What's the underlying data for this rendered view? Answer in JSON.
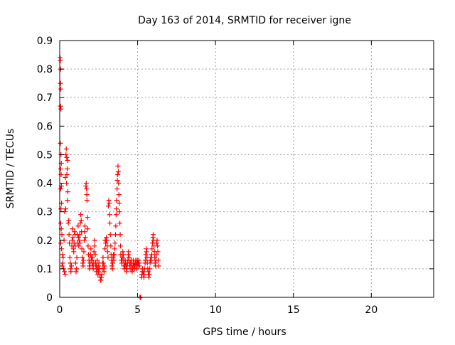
{
  "chart_data": {
    "type": "scatter",
    "title": "Day 163 of 2014, SRMTID for receiver igne",
    "xlabel": "GPS time / hours",
    "ylabel": "SRMTID / TECUs",
    "xlim": [
      0,
      24
    ],
    "ylim": [
      0,
      0.9
    ],
    "xticks": [
      0,
      5,
      10,
      15,
      20
    ],
    "yticks": [
      0,
      0.1,
      0.2,
      0.3,
      0.4,
      0.5,
      0.6,
      0.7,
      0.8,
      0.9
    ],
    "xtick_labels": [
      "0",
      "5",
      "10",
      "15",
      "20"
    ],
    "ytick_labels": [
      "0",
      "0.1",
      "0.2",
      "0.3",
      "0.4",
      "0.5",
      "0.6",
      "0.7",
      "0.8",
      "0.9"
    ],
    "grid": true,
    "marker": "+",
    "color": "#ff0000",
    "series": [
      {
        "name": "SRMTID",
        "points": [
          [
            0.03,
            0.84
          ],
          [
            0.04,
            0.83
          ],
          [
            0.06,
            0.8
          ],
          [
            0.05,
            0.75
          ],
          [
            0.07,
            0.73
          ],
          [
            0.05,
            0.67
          ],
          [
            0.08,
            0.66
          ],
          [
            0.04,
            0.54
          ],
          [
            0.08,
            0.5
          ],
          [
            0.1,
            0.47
          ],
          [
            0.06,
            0.45
          ],
          [
            0.09,
            0.43
          ],
          [
            0.11,
            0.39
          ],
          [
            0.06,
            0.38
          ],
          [
            0.12,
            0.33
          ],
          [
            0.08,
            0.31
          ],
          [
            0.06,
            0.26
          ],
          [
            0.1,
            0.24
          ],
          [
            0.14,
            0.22
          ],
          [
            0.07,
            0.19
          ],
          [
            0.12,
            0.17
          ],
          [
            0.18,
            0.15
          ],
          [
            0.2,
            0.12
          ],
          [
            0.25,
            0.1
          ],
          [
            0.3,
            0.09
          ],
          [
            0.22,
            0.14
          ],
          [
            0.15,
            0.11
          ],
          [
            0.35,
            0.08
          ],
          [
            0.28,
            0.2
          ],
          [
            0.32,
            0.3
          ],
          [
            0.36,
            0.42
          ],
          [
            0.4,
            0.5
          ],
          [
            0.42,
            0.52
          ],
          [
            0.45,
            0.49
          ],
          [
            0.48,
            0.45
          ],
          [
            0.5,
            0.48
          ],
          [
            0.44,
            0.4
          ],
          [
            0.46,
            0.43
          ],
          [
            0.52,
            0.37
          ],
          [
            0.38,
            0.31
          ],
          [
            0.55,
            0.26
          ],
          [
            0.58,
            0.27
          ],
          [
            0.5,
            0.34
          ],
          [
            0.6,
            0.22
          ],
          [
            0.62,
            0.19
          ],
          [
            0.65,
            0.14
          ],
          [
            0.68,
            0.12
          ],
          [
            0.7,
            0.1
          ],
          [
            0.72,
            0.09
          ],
          [
            0.75,
            0.11
          ],
          [
            0.78,
            0.18
          ],
          [
            0.8,
            0.2
          ],
          [
            0.82,
            0.24
          ],
          [
            0.85,
            0.21
          ],
          [
            0.88,
            0.17
          ],
          [
            0.9,
            0.16
          ],
          [
            0.92,
            0.19
          ],
          [
            0.95,
            0.23
          ],
          [
            0.98,
            0.22
          ],
          [
            1.0,
            0.18
          ],
          [
            1.02,
            0.12
          ],
          [
            1.05,
            0.09
          ],
          [
            1.08,
            0.1
          ],
          [
            1.1,
            0.14
          ],
          [
            1.12,
            0.19
          ],
          [
            1.15,
            0.22
          ],
          [
            1.18,
            0.25
          ],
          [
            1.2,
            0.21
          ],
          [
            1.22,
            0.18
          ],
          [
            1.25,
            0.2
          ],
          [
            1.28,
            0.22
          ],
          [
            1.3,
            0.19
          ],
          [
            1.32,
            0.26
          ],
          [
            1.35,
            0.29
          ],
          [
            1.38,
            0.27
          ],
          [
            1.4,
            0.23
          ],
          [
            1.42,
            0.17
          ],
          [
            1.45,
            0.14
          ],
          [
            1.48,
            0.12
          ],
          [
            1.5,
            0.11
          ],
          [
            1.52,
            0.13
          ],
          [
            1.55,
            0.16
          ],
          [
            1.58,
            0.2
          ],
          [
            1.6,
            0.23
          ],
          [
            1.62,
            0.25
          ],
          [
            1.65,
            0.21
          ],
          [
            1.68,
            0.39
          ],
          [
            1.7,
            0.4
          ],
          [
            1.72,
            0.38
          ],
          [
            1.74,
            0.36
          ],
          [
            1.75,
            0.34
          ],
          [
            1.78,
            0.28
          ],
          [
            1.8,
            0.24
          ],
          [
            1.82,
            0.18
          ],
          [
            1.85,
            0.15
          ],
          [
            1.88,
            0.13
          ],
          [
            1.9,
            0.11
          ],
          [
            1.92,
            0.1
          ],
          [
            1.95,
            0.12
          ],
          [
            1.98,
            0.15
          ],
          [
            2.0,
            0.17
          ],
          [
            2.02,
            0.14
          ],
          [
            2.05,
            0.13
          ],
          [
            2.08,
            0.12
          ],
          [
            2.1,
            0.14
          ],
          [
            2.12,
            0.11
          ],
          [
            2.15,
            0.1
          ],
          [
            2.18,
            0.12
          ],
          [
            2.2,
            0.16
          ],
          [
            2.22,
            0.18
          ],
          [
            2.25,
            0.2
          ],
          [
            2.28,
            0.15
          ],
          [
            2.3,
            0.12
          ],
          [
            2.32,
            0.11
          ],
          [
            2.35,
            0.09
          ],
          [
            2.38,
            0.11
          ],
          [
            2.4,
            0.13
          ],
          [
            2.42,
            0.1
          ],
          [
            2.45,
            0.08
          ],
          [
            2.48,
            0.09
          ],
          [
            2.5,
            0.11
          ],
          [
            2.52,
            0.12
          ],
          [
            2.55,
            0.1
          ],
          [
            2.58,
            0.08
          ],
          [
            2.6,
            0.07
          ],
          [
            2.62,
            0.06
          ],
          [
            2.65,
            0.06
          ],
          [
            2.68,
            0.07
          ],
          [
            2.7,
            0.08
          ],
          [
            2.72,
            0.1
          ],
          [
            2.75,
            0.12
          ],
          [
            2.78,
            0.14
          ],
          [
            2.8,
            0.12
          ],
          [
            2.82,
            0.1
          ],
          [
            2.85,
            0.09
          ],
          [
            2.88,
            0.11
          ],
          [
            2.9,
            0.17
          ],
          [
            2.92,
            0.2
          ],
          [
            2.95,
            0.19
          ],
          [
            2.98,
            0.2
          ],
          [
            3.0,
            0.21
          ],
          [
            3.02,
            0.2
          ],
          [
            3.05,
            0.18
          ],
          [
            3.08,
            0.16
          ],
          [
            3.1,
            0.14
          ],
          [
            3.12,
            0.32
          ],
          [
            3.15,
            0.34
          ],
          [
            3.18,
            0.33
          ],
          [
            3.2,
            0.29
          ],
          [
            3.22,
            0.26
          ],
          [
            3.25,
            0.22
          ],
          [
            3.28,
            0.18
          ],
          [
            3.3,
            0.15
          ],
          [
            3.32,
            0.13
          ],
          [
            3.35,
            0.11
          ],
          [
            3.38,
            0.1
          ],
          [
            3.4,
            0.12
          ],
          [
            3.42,
            0.14
          ],
          [
            3.45,
            0.15
          ],
          [
            3.48,
            0.13
          ],
          [
            3.5,
            0.15
          ],
          [
            3.52,
            0.17
          ],
          [
            3.55,
            0.19
          ],
          [
            3.58,
            0.22
          ],
          [
            3.6,
            0.25
          ],
          [
            3.62,
            0.29
          ],
          [
            3.64,
            0.31
          ],
          [
            3.66,
            0.34
          ],
          [
            3.68,
            0.38
          ],
          [
            3.7,
            0.41
          ],
          [
            3.72,
            0.43
          ],
          [
            3.74,
            0.46
          ],
          [
            3.76,
            0.44
          ],
          [
            3.78,
            0.4
          ],
          [
            3.8,
            0.36
          ],
          [
            3.82,
            0.33
          ],
          [
            3.84,
            0.3
          ],
          [
            3.86,
            0.26
          ],
          [
            3.88,
            0.22
          ],
          [
            3.9,
            0.18
          ],
          [
            3.92,
            0.15
          ],
          [
            3.95,
            0.13
          ],
          [
            3.98,
            0.12
          ],
          [
            4.0,
            0.13
          ],
          [
            4.02,
            0.14
          ],
          [
            4.05,
            0.16
          ],
          [
            4.08,
            0.15
          ],
          [
            4.1,
            0.13
          ],
          [
            4.12,
            0.11
          ],
          [
            4.15,
            0.1
          ],
          [
            4.18,
            0.11
          ],
          [
            4.2,
            0.13
          ],
          [
            4.22,
            0.12
          ],
          [
            4.25,
            0.11
          ],
          [
            4.28,
            0.1
          ],
          [
            4.3,
            0.09
          ],
          [
            4.32,
            0.11
          ],
          [
            4.35,
            0.12
          ],
          [
            4.38,
            0.13
          ],
          [
            4.4,
            0.15
          ],
          [
            4.42,
            0.16
          ],
          [
            4.45,
            0.14
          ],
          [
            4.48,
            0.12
          ],
          [
            4.5,
            0.11
          ],
          [
            4.52,
            0.1
          ],
          [
            4.55,
            0.12
          ],
          [
            4.58,
            0.13
          ],
          [
            4.6,
            0.12
          ],
          [
            4.62,
            0.1
          ],
          [
            4.65,
            0.09
          ],
          [
            4.68,
            0.1
          ],
          [
            4.7,
            0.11
          ],
          [
            4.72,
            0.13
          ],
          [
            4.75,
            0.12
          ],
          [
            4.78,
            0.11
          ],
          [
            4.8,
            0.1
          ],
          [
            4.82,
            0.11
          ],
          [
            4.85,
            0.12
          ],
          [
            4.88,
            0.13
          ],
          [
            4.9,
            0.11
          ],
          [
            4.92,
            0.1
          ],
          [
            4.95,
            0.12
          ],
          [
            4.98,
            0.13
          ],
          [
            5.0,
            0.12
          ],
          [
            5.02,
            0.11
          ],
          [
            5.05,
            0.12
          ],
          [
            5.08,
            0.13
          ],
          [
            5.1,
            0.12
          ],
          [
            5.12,
            0.11
          ],
          [
            5.15,
            0.0
          ],
          [
            5.17,
            0.0
          ],
          [
            5.2,
            0.0
          ],
          [
            5.25,
            0.07
          ],
          [
            5.28,
            0.08
          ],
          [
            5.3,
            0.09
          ],
          [
            5.32,
            0.1
          ],
          [
            5.35,
            0.09
          ],
          [
            5.38,
            0.08
          ],
          [
            5.4,
            0.07
          ],
          [
            5.42,
            0.08
          ],
          [
            5.45,
            0.1
          ],
          [
            5.48,
            0.12
          ],
          [
            5.5,
            0.13
          ],
          [
            5.52,
            0.15
          ],
          [
            5.55,
            0.17
          ],
          [
            5.58,
            0.16
          ],
          [
            5.6,
            0.14
          ],
          [
            5.62,
            0.12
          ],
          [
            5.65,
            0.1
          ],
          [
            5.68,
            0.09
          ],
          [
            5.7,
            0.08
          ],
          [
            5.72,
            0.07
          ],
          [
            5.75,
            0.08
          ],
          [
            5.78,
            0.1
          ],
          [
            5.8,
            0.12
          ],
          [
            5.82,
            0.13
          ],
          [
            5.85,
            0.14
          ],
          [
            5.88,
            0.13
          ],
          [
            5.9,
            0.15
          ],
          [
            5.92,
            0.17
          ],
          [
            5.95,
            0.19
          ],
          [
            5.98,
            0.21
          ],
          [
            6.0,
            0.22
          ],
          [
            6.02,
            0.2
          ],
          [
            6.05,
            0.18
          ],
          [
            6.08,
            0.16
          ],
          [
            6.1,
            0.14
          ],
          [
            6.12,
            0.12
          ],
          [
            6.15,
            0.11
          ],
          [
            6.18,
            0.13
          ],
          [
            6.2,
            0.15
          ],
          [
            6.22,
            0.19
          ],
          [
            6.25,
            0.2
          ],
          [
            6.28,
            0.18
          ],
          [
            6.3,
            0.16
          ],
          [
            6.32,
            0.13
          ],
          [
            6.35,
            0.11
          ]
        ]
      }
    ]
  }
}
